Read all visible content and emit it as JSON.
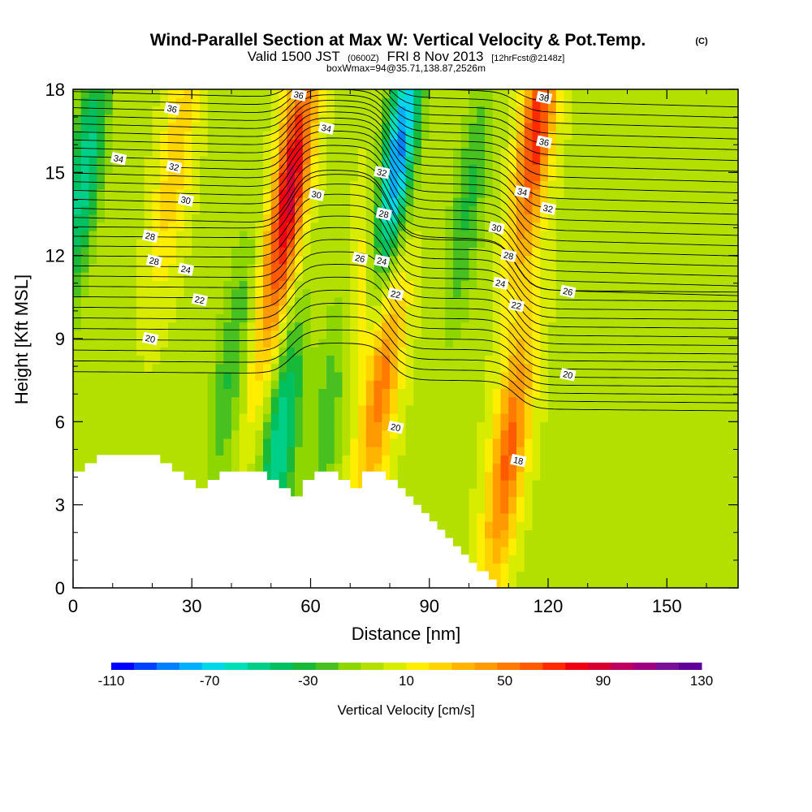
{
  "chart_data": {
    "type": "heatmap",
    "title": "Wind-Parallel Section at Max W: Vertical Velocity & Pot.Temp.",
    "title_mark": "(C)",
    "subtitle_parts": [
      "Valid 1500 JST",
      "(0600Z)",
      "FRI 8 Nov 2013",
      "[12hrFcst@2148z]"
    ],
    "subtitle2": "boxWmax=94@35.71,138.87,2526m",
    "xlabel": "Distance [nm]",
    "ylabel": "Height [Kft MSL]",
    "xlim": [
      0,
      168
    ],
    "ylim": [
      0,
      18
    ],
    "x_ticks": [
      "0",
      "30",
      "60",
      "90",
      "120",
      "150"
    ],
    "y_ticks": [
      "0",
      "3",
      "6",
      "9",
      "12",
      "15",
      "18"
    ],
    "colorbar": {
      "title": "Vertical Velocity [cm/s]",
      "tick_labels": [
        "-110",
        "-70",
        "-30",
        "10",
        "50",
        "90",
        "130"
      ],
      "levels": [
        -110,
        -100,
        -90,
        -80,
        -70,
        -60,
        -50,
        -40,
        -30,
        -20,
        -10,
        0,
        10,
        20,
        30,
        40,
        50,
        60,
        70,
        80,
        90,
        100,
        110,
        120,
        130
      ],
      "colors": [
        "#0000ff",
        "#0040ff",
        "#0080ff",
        "#00b0ff",
        "#00d8ea",
        "#00e0b8",
        "#00cf88",
        "#00c060",
        "#18b838",
        "#48c020",
        "#8ed600",
        "#b4e000",
        "#d8ec00",
        "#ffee00",
        "#ffd400",
        "#ffb400",
        "#ff9a00",
        "#ff7a00",
        "#ff5a00",
        "#ff2a00",
        "#f00010",
        "#d80030",
        "#c00060",
        "#a00080",
        "#7a1098",
        "#600098"
      ]
    },
    "updrafts": [
      {
        "x": 55,
        "z": 14.5,
        "w": 94
      },
      {
        "x": 117,
        "z": 16.5,
        "w": 80
      },
      {
        "x": 110,
        "z": 4.8,
        "w": 65
      },
      {
        "x": 78,
        "z": 7.5,
        "w": 58
      },
      {
        "x": 26,
        "z": 15.5,
        "w": 30
      },
      {
        "x": 48,
        "z": 9,
        "w": 20
      },
      {
        "x": 72,
        "z": 10.5,
        "w": 32
      }
    ],
    "downdrafts": [
      {
        "x": 82,
        "z": 15.5,
        "w": -95
      },
      {
        "x": 3,
        "z": 15,
        "w": -55
      },
      {
        "x": 52,
        "z": 5,
        "w": -60
      },
      {
        "x": 40,
        "z": 8,
        "w": -30
      },
      {
        "x": 66,
        "z": 7,
        "w": -35
      },
      {
        "x": 100,
        "z": 14,
        "w": -30
      }
    ],
    "contour_labels": [
      {
        "x": 25,
        "z": 17.3,
        "text": "36"
      },
      {
        "x": 57,
        "z": 17.8,
        "text": "36"
      },
      {
        "x": 11.5,
        "z": 15.5,
        "text": "34"
      },
      {
        "x": 64,
        "z": 16.6,
        "text": "34"
      },
      {
        "x": 25.5,
        "z": 15.2,
        "text": "32"
      },
      {
        "x": 28.5,
        "z": 14.0,
        "text": "30"
      },
      {
        "x": 19.5,
        "z": 12.7,
        "text": "28"
      },
      {
        "x": 20.5,
        "z": 11.8,
        "text": "28"
      },
      {
        "x": 28.5,
        "z": 11.5,
        "text": "24"
      },
      {
        "x": 32,
        "z": 10.4,
        "text": "22"
      },
      {
        "x": 19.5,
        "z": 9.0,
        "text": "20"
      },
      {
        "x": 61.5,
        "z": 14.2,
        "text": "30"
      },
      {
        "x": 72.5,
        "z": 11.9,
        "text": "26"
      },
      {
        "x": 78,
        "z": 15.0,
        "text": "32"
      },
      {
        "x": 78.5,
        "z": 13.5,
        "text": "28"
      },
      {
        "x": 78,
        "z": 11.8,
        "text": "24"
      },
      {
        "x": 81.5,
        "z": 10.6,
        "text": "22"
      },
      {
        "x": 81.5,
        "z": 5.8,
        "text": "20"
      },
      {
        "x": 107,
        "z": 13.0,
        "text": "30"
      },
      {
        "x": 110,
        "z": 12.0,
        "text": "28"
      },
      {
        "x": 108,
        "z": 11.0,
        "text": "24"
      },
      {
        "x": 112,
        "z": 10.2,
        "text": "22"
      },
      {
        "x": 113.5,
        "z": 14.3,
        "text": "34"
      },
      {
        "x": 119,
        "z": 17.7,
        "text": "36"
      },
      {
        "x": 119,
        "z": 16.1,
        "text": "36"
      },
      {
        "x": 120,
        "z": 13.7,
        "text": "32"
      },
      {
        "x": 125,
        "z": 10.7,
        "text": "26"
      },
      {
        "x": 125,
        "z": 7.7,
        "text": "20"
      },
      {
        "x": 112.5,
        "z": 4.6,
        "text": "18"
      }
    ],
    "terrain": [
      {
        "x": 0,
        "z": 4.2
      },
      {
        "x": 3,
        "z": 4.2
      },
      {
        "x": 3,
        "z": 4.5
      },
      {
        "x": 6,
        "z": 4.5
      },
      {
        "x": 6,
        "z": 4.8
      },
      {
        "x": 22,
        "z": 4.8
      },
      {
        "x": 22,
        "z": 4.5
      },
      {
        "x": 25,
        "z": 4.5
      },
      {
        "x": 25,
        "z": 4.2
      },
      {
        "x": 28,
        "z": 4.2
      },
      {
        "x": 28,
        "z": 3.9
      },
      {
        "x": 31,
        "z": 3.9
      },
      {
        "x": 31,
        "z": 3.6
      },
      {
        "x": 34,
        "z": 3.6
      },
      {
        "x": 34,
        "z": 3.9
      },
      {
        "x": 37,
        "z": 3.9
      },
      {
        "x": 37,
        "z": 4.2
      },
      {
        "x": 49,
        "z": 4.2
      },
      {
        "x": 49,
        "z": 3.9
      },
      {
        "x": 52,
        "z": 3.9
      },
      {
        "x": 52,
        "z": 3.6
      },
      {
        "x": 55,
        "z": 3.6
      },
      {
        "x": 55,
        "z": 3.3
      },
      {
        "x": 58,
        "z": 3.3
      },
      {
        "x": 58,
        "z": 3.9
      },
      {
        "x": 61,
        "z": 3.9
      },
      {
        "x": 61,
        "z": 4.2
      },
      {
        "x": 67,
        "z": 4.2
      },
      {
        "x": 67,
        "z": 3.9
      },
      {
        "x": 70,
        "z": 3.9
      },
      {
        "x": 70,
        "z": 3.6
      },
      {
        "x": 73,
        "z": 3.6
      },
      {
        "x": 73,
        "z": 4.2
      },
      {
        "x": 79,
        "z": 4.2
      },
      {
        "x": 79,
        "z": 3.9
      },
      {
        "x": 82,
        "z": 3.9
      },
      {
        "x": 82,
        "z": 3.6
      },
      {
        "x": 84,
        "z": 3.6
      },
      {
        "x": 84,
        "z": 3.3
      },
      {
        "x": 86,
        "z": 3.3
      },
      {
        "x": 86,
        "z": 3.0
      },
      {
        "x": 88,
        "z": 3.0
      },
      {
        "x": 88,
        "z": 2.7
      },
      {
        "x": 90,
        "z": 2.7
      },
      {
        "x": 90,
        "z": 2.4
      },
      {
        "x": 92,
        "z": 2.4
      },
      {
        "x": 92,
        "z": 2.1
      },
      {
        "x": 94,
        "z": 2.1
      },
      {
        "x": 94,
        "z": 1.8
      },
      {
        "x": 96,
        "z": 1.8
      },
      {
        "x": 96,
        "z": 1.5
      },
      {
        "x": 98,
        "z": 1.5
      },
      {
        "x": 98,
        "z": 1.2
      },
      {
        "x": 100,
        "z": 1.2
      },
      {
        "x": 100,
        "z": 0.9
      },
      {
        "x": 102,
        "z": 0.9
      },
      {
        "x": 102,
        "z": 0.6
      },
      {
        "x": 105,
        "z": 0.6
      },
      {
        "x": 105,
        "z": 0.3
      },
      {
        "x": 107,
        "z": 0.3
      },
      {
        "x": 107,
        "z": 0
      }
    ]
  }
}
